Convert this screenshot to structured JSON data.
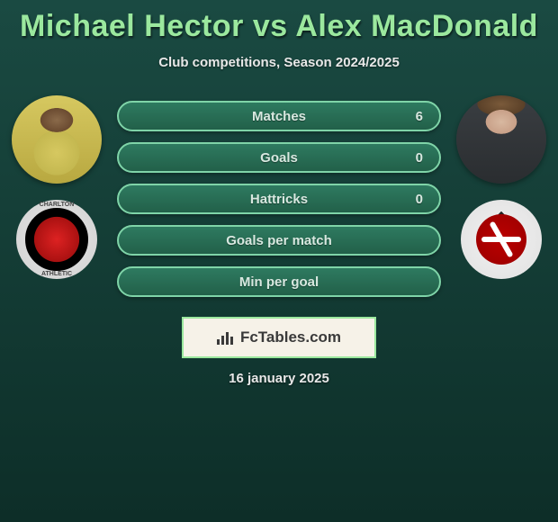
{
  "title": "Michael Hector vs Alex MacDonald",
  "subtitle": "Club competitions, Season 2024/2025",
  "date": "16 january 2025",
  "brand": "FcTables.com",
  "colors": {
    "title": "#9be89e",
    "pill_bg_top": "#2e7a60",
    "pill_bg_bottom": "#226049",
    "pill_border": "#7fd4a8",
    "text": "#e8e8e8",
    "bg_top": "#1a4a42",
    "bg_bottom": "#0d2e28"
  },
  "stats": [
    {
      "label": "Matches",
      "value": "6"
    },
    {
      "label": "Goals",
      "value": "0"
    },
    {
      "label": "Hattricks",
      "value": "0"
    },
    {
      "label": "Goals per match",
      "value": ""
    },
    {
      "label": "Min per goal",
      "value": ""
    }
  ],
  "left": {
    "player": "Michael Hector",
    "club": "Charlton Athletic"
  },
  "right": {
    "player": "Alex MacDonald",
    "club": "Rotherham"
  }
}
